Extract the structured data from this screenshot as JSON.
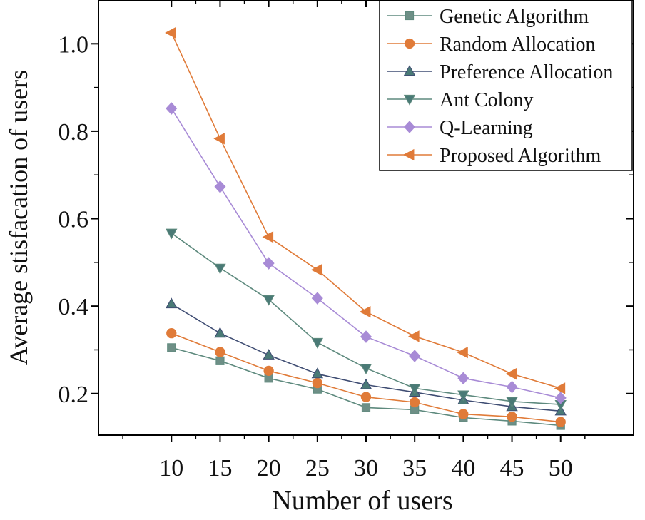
{
  "chart_data": {
    "type": "line",
    "title": "",
    "xlabel": "Number of users",
    "ylabel": "Average stisfacation of users",
    "x": [
      10,
      15,
      20,
      25,
      30,
      35,
      40,
      45,
      50
    ],
    "xticks": [
      "10",
      "15",
      "20",
      "25",
      "30",
      "35",
      "40",
      "45",
      "50"
    ],
    "yticks": [
      "0.2",
      "0.4",
      "0.6",
      "0.8",
      "1.0"
    ],
    "xlim": [
      2.5,
      57.5
    ],
    "ylim": [
      0.105,
      1.1
    ],
    "grid": false,
    "legend_position": "top-right",
    "series": [
      {
        "name": "Genetic Algorithm",
        "marker": "square",
        "line_color": "#5e8a7e",
        "marker_color": "#6e8f86",
        "values": [
          0.305,
          0.275,
          0.235,
          0.21,
          0.168,
          0.163,
          0.145,
          0.137,
          0.127
        ]
      },
      {
        "name": "Random Allocation",
        "marker": "circle",
        "line_color": "#e07b39",
        "marker_color": "#e07b39",
        "values": [
          0.338,
          0.295,
          0.252,
          0.224,
          0.192,
          0.18,
          0.153,
          0.147,
          0.135
        ]
      },
      {
        "name": "Preference Allocation",
        "marker": "triangle-up",
        "line_color": "#3f4d73",
        "marker_color": "#4a7a76",
        "values": [
          0.405,
          0.338,
          0.288,
          0.245,
          0.22,
          0.203,
          0.185,
          0.17,
          0.16
        ]
      },
      {
        "name": "Ant Colony",
        "marker": "triangle-down",
        "line_color": "#5e8a7e",
        "marker_color": "#4a7a76",
        "values": [
          0.567,
          0.487,
          0.415,
          0.317,
          0.258,
          0.212,
          0.197,
          0.182,
          0.175
        ]
      },
      {
        "name": "Q-Learning",
        "marker": "diamond",
        "line_color": "#a88bd6",
        "marker_color": "#a88bd6",
        "values": [
          0.852,
          0.673,
          0.498,
          0.418,
          0.33,
          0.286,
          0.235,
          0.215,
          0.19
        ]
      },
      {
        "name": "Proposed Algorithm",
        "marker": "triangle-left",
        "line_color": "#e07b39",
        "marker_color": "#e07b39",
        "values": [
          1.025,
          0.783,
          0.558,
          0.483,
          0.387,
          0.331,
          0.294,
          0.245,
          0.212
        ]
      }
    ]
  }
}
